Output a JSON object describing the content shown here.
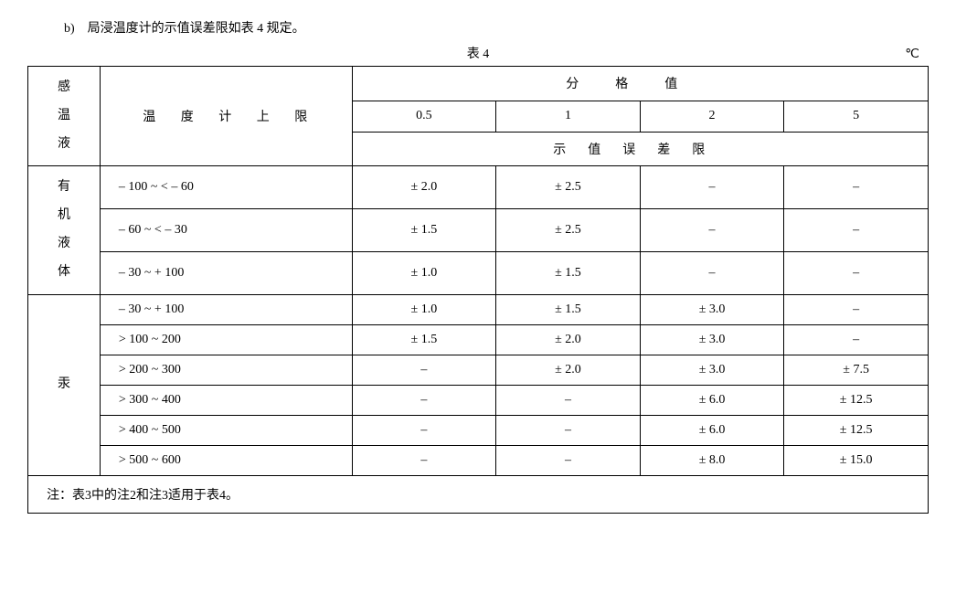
{
  "caption": "b)　局浸温度计的示值误差限如表 4 规定。",
  "table_label": "表 4",
  "unit": "℃",
  "header": {
    "col1": "感温液",
    "col2": "温 度 计 上 限",
    "group_top": "分　　格　　值",
    "group_bottom": "示　值　误　差　限",
    "div_values": [
      "0.5",
      "1",
      "2",
      "5"
    ]
  },
  "groups": [
    {
      "label": "有机液体",
      "rows": [
        {
          "range": "– 100 ~ < – 60",
          "v": [
            "± 2.0",
            "± 2.5",
            "–",
            "–"
          ]
        },
        {
          "range": "– 60 ~ < – 30",
          "v": [
            "± 1.5",
            "± 2.5",
            "–",
            "–"
          ]
        },
        {
          "range": "– 30 ~ + 100",
          "v": [
            "± 1.0",
            "± 1.5",
            "–",
            "–"
          ]
        }
      ]
    },
    {
      "label": "汞",
      "rows": [
        {
          "range": "– 30 ~ + 100",
          "v": [
            "± 1.0",
            "± 1.5",
            "± 3.0",
            "–"
          ]
        },
        {
          "range": "> 100 ~ 200",
          "v": [
            "± 1.5",
            "± 2.0",
            "± 3.0",
            "–"
          ]
        },
        {
          "range": "> 200 ~ 300",
          "v": [
            "–",
            "± 2.0",
            "± 3.0",
            "± 7.5"
          ]
        },
        {
          "range": "> 300 ~ 400",
          "v": [
            "–",
            "–",
            "± 6.0",
            "± 12.5"
          ]
        },
        {
          "range": "> 400 ~ 500",
          "v": [
            "–",
            "–",
            "± 6.0",
            "± 12.5"
          ]
        },
        {
          "range": "> 500 ~ 600",
          "v": [
            "–",
            "–",
            "± 8.0",
            "± 15.0"
          ]
        }
      ]
    }
  ],
  "note": "注：表3中的注2和注3适用于表4。"
}
